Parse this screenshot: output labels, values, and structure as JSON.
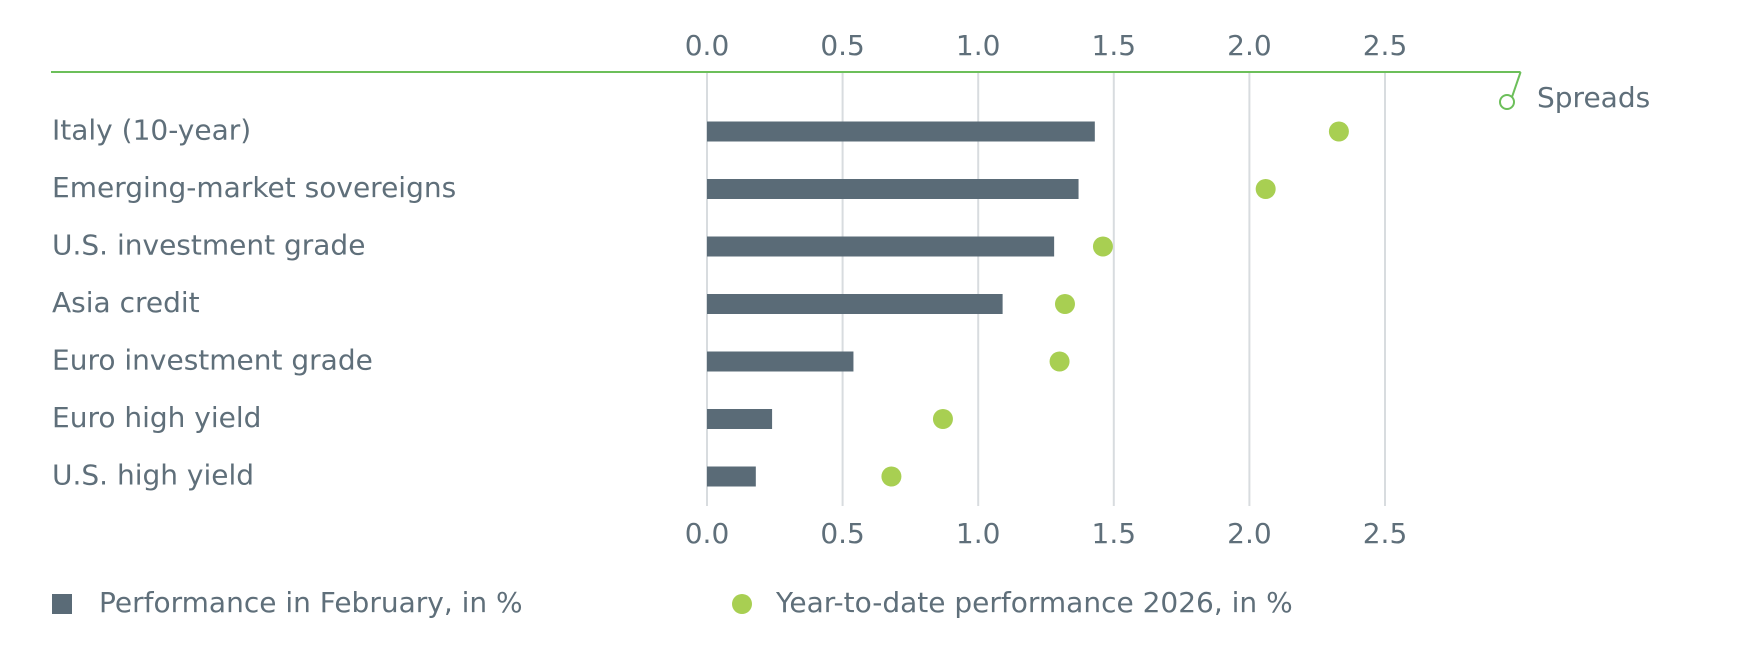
{
  "chart_data": {
    "type": "bar",
    "categories": [
      "Italy (10-year)",
      "Emerging-market sovereigns",
      "U.S. investment grade",
      "Asia credit",
      "Euro investment grade",
      "Euro high yield",
      "U.S. high yield"
    ],
    "series": [
      {
        "name": "Performance in February, in %",
        "color": "#5a6b77",
        "values": [
          1.43,
          1.37,
          1.28,
          1.09,
          0.54,
          0.24,
          0.18
        ]
      },
      {
        "name": "Year-to-date performance 2026, in %",
        "color": "#a8cf52",
        "values": [
          2.33,
          2.06,
          1.46,
          1.32,
          1.3,
          0.87,
          0.68
        ]
      }
    ],
    "xlim": [
      0,
      3.0
    ],
    "xticks": [
      {
        "value": 0,
        "label": "0.0"
      },
      {
        "value": 0.5,
        "label": "0.5"
      },
      {
        "value": 1,
        "label": "1.0"
      },
      {
        "value": 1.5,
        "label": "1.5"
      },
      {
        "value": 2,
        "label": "2.0"
      },
      {
        "value": 2.5,
        "label": "2.5"
      }
    ],
    "annotation": "Spreads",
    "grid": true
  }
}
